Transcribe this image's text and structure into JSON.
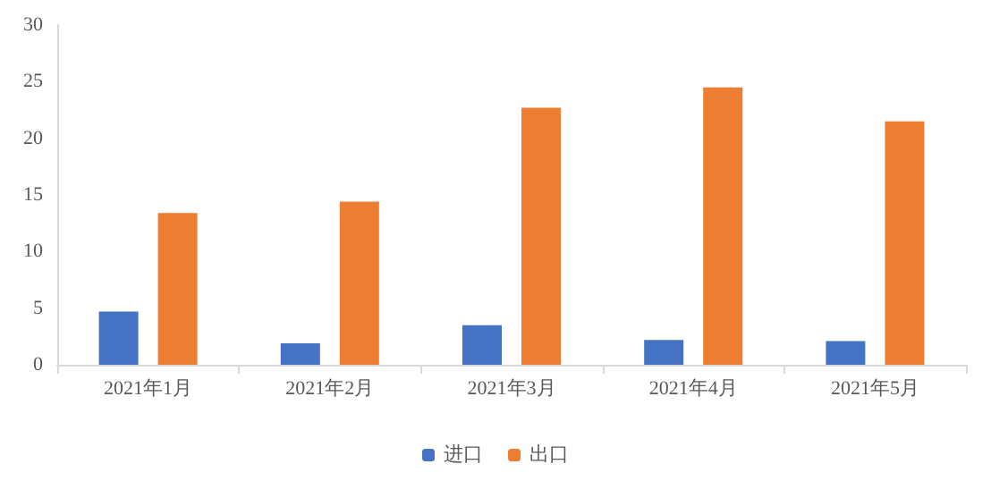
{
  "chart_data": {
    "type": "bar",
    "categories": [
      "2021年1月",
      "2021年2月",
      "2021年3月",
      "2021年4月",
      "2021年5月"
    ],
    "series": [
      {
        "name": "进口",
        "color": "#4472c4",
        "values": [
          4.7,
          1.9,
          3.5,
          2.2,
          2.1
        ]
      },
      {
        "name": "出口",
        "color": "#ed7d31",
        "values": [
          13.4,
          14.4,
          22.7,
          24.5,
          21.5
        ]
      }
    ],
    "ylim": [
      0,
      30
    ],
    "yticks": [
      0,
      5,
      10,
      15,
      20,
      25,
      30
    ],
    "grid": false,
    "legend": "bottom"
  }
}
